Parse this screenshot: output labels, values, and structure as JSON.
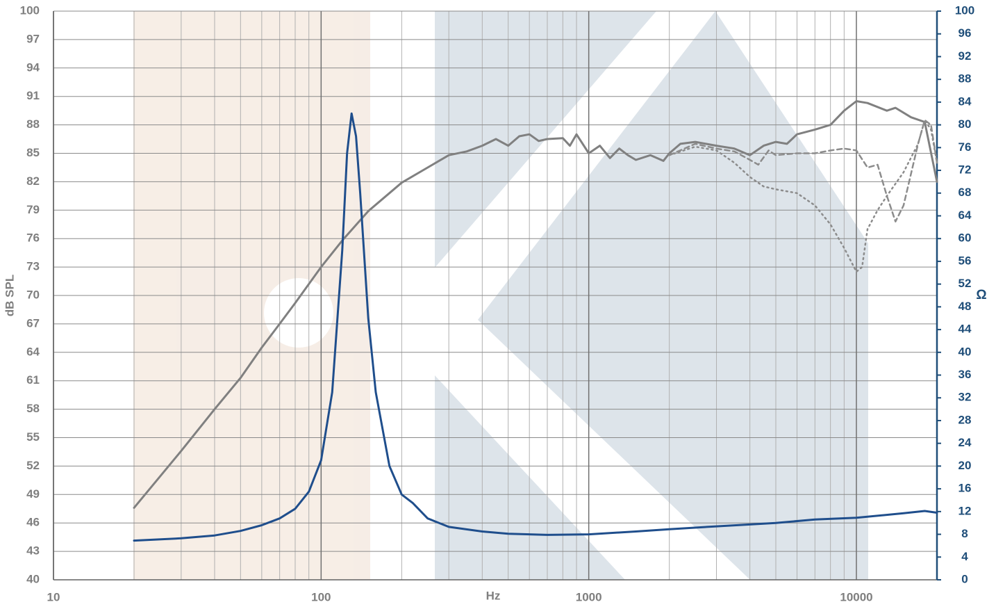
{
  "chart_data": {
    "type": "line",
    "x_label": "Hz",
    "y_label": "dB SPL",
    "y2_label": "Ω",
    "xscale": "log",
    "grid": true,
    "xlim": [
      10,
      20000
    ],
    "xticks": [
      10,
      100,
      1000,
      10000
    ],
    "xminorticks": [
      20,
      30,
      40,
      50,
      60,
      70,
      80,
      90,
      200,
      300,
      400,
      500,
      600,
      700,
      800,
      900,
      2000,
      3000,
      4000,
      5000,
      6000,
      7000,
      8000,
      9000
    ],
    "ylim": [
      40,
      100
    ],
    "yticks": [
      40,
      43,
      46,
      49,
      52,
      55,
      58,
      61,
      64,
      67,
      70,
      73,
      76,
      79,
      82,
      85,
      88,
      91,
      94,
      97,
      100
    ],
    "y2lim": [
      0,
      100
    ],
    "y2ticks": [
      0,
      4,
      8,
      12,
      16,
      20,
      24,
      28,
      32,
      36,
      40,
      44,
      48,
      52,
      56,
      60,
      64,
      68,
      72,
      76,
      80,
      84,
      88,
      92,
      96,
      100
    ],
    "series": [
      {
        "color": "#808080",
        "style": "solid",
        "axis": "y",
        "x": [
          20,
          30,
          40,
          50,
          60,
          70,
          80,
          100,
          120,
          150,
          200,
          250,
          300,
          350,
          400,
          450,
          500,
          550,
          600,
          650,
          700,
          800,
          850,
          900,
          1000,
          1100,
          1200,
          1300,
          1400,
          1500,
          1700,
          1900,
          2000,
          2200,
          2500,
          3000,
          3500,
          4000,
          4500,
          5000,
          5500,
          6000,
          7000,
          8000,
          9000,
          10000,
          11000,
          13000,
          14000,
          16000,
          18000,
          20000
        ],
        "values": [
          47.6,
          53.6,
          58.0,
          61.3,
          64.5,
          67.0,
          69.2,
          73.0,
          75.8,
          78.9,
          81.9,
          83.5,
          84.8,
          85.2,
          85.8,
          86.5,
          85.8,
          86.8,
          87.0,
          86.3,
          86.5,
          86.6,
          85.8,
          87.0,
          85.0,
          85.8,
          84.5,
          85.5,
          84.8,
          84.3,
          84.8,
          84.2,
          85.0,
          86.0,
          86.2,
          85.8,
          85.5,
          84.8,
          85.8,
          86.2,
          86.0,
          87.0,
          87.5,
          88.0,
          89.5,
          90.5,
          90.3,
          89.5,
          89.8,
          88.8,
          88.3,
          82.0
        ]
      },
      {
        "color": "#8c8c8c",
        "style": "dashed",
        "axis": "y",
        "x": [
          2000,
          2500,
          3000,
          3500,
          4000,
          4300,
          4700,
          5000,
          6000,
          7000,
          8000,
          9000,
          10000,
          11000,
          12000,
          13000,
          14000,
          15000,
          17000,
          18000,
          19000,
          20000
        ],
        "values": [
          84.8,
          86.0,
          85.5,
          85.2,
          84.3,
          83.8,
          85.3,
          84.8,
          85.0,
          85.0,
          85.3,
          85.5,
          85.3,
          83.5,
          83.8,
          80.5,
          77.8,
          79.5,
          86.0,
          88.5,
          88.0,
          84.0
        ]
      },
      {
        "color": "#8c8c8c",
        "style": "dotted",
        "axis": "y",
        "x": [
          2000,
          2500,
          3000,
          3500,
          4000,
          4500,
          5000,
          6000,
          7000,
          8000,
          9000,
          10000,
          10500,
          11000,
          12000,
          13000,
          15000,
          17000,
          18000,
          19000,
          20000
        ],
        "values": [
          84.8,
          85.7,
          85.3,
          84.0,
          82.5,
          81.5,
          81.2,
          80.8,
          79.5,
          77.5,
          75.0,
          72.5,
          73.0,
          77.0,
          79.0,
          80.5,
          83.0,
          86.0,
          88.5,
          87.5,
          84.0
        ]
      },
      {
        "color": "#1f4e8c",
        "style": "solid",
        "axis": "y2",
        "x": [
          20,
          30,
          40,
          50,
          60,
          70,
          80,
          90,
          100,
          110,
          120,
          125,
          130,
          135,
          140,
          150,
          160,
          180,
          200,
          220,
          250,
          300,
          400,
          500,
          700,
          1000,
          1500,
          2000,
          3000,
          5000,
          7000,
          10000,
          15000,
          18000,
          20000
        ],
        "values": [
          6.9,
          7.3,
          7.8,
          8.6,
          9.6,
          10.8,
          12.5,
          15.5,
          21,
          33,
          58,
          75,
          82,
          78,
          68,
          46,
          33,
          20,
          15,
          13.5,
          10.8,
          9.3,
          8.5,
          8.1,
          7.9,
          8.0,
          8.5,
          8.9,
          9.4,
          10.0,
          10.6,
          10.9,
          11.7,
          12.1,
          11.8
        ]
      }
    ]
  }
}
